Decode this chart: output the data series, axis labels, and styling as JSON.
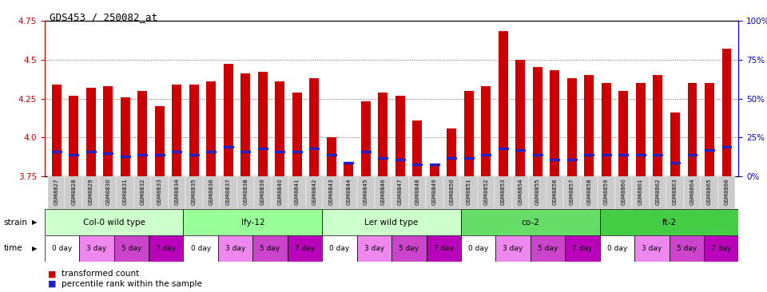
{
  "title": "GDS453 / 250082_at",
  "gsm_labels": [
    "GSM8827",
    "GSM8828",
    "GSM8829",
    "GSM8830",
    "GSM8831",
    "GSM8832",
    "GSM8833",
    "GSM8834",
    "GSM8835",
    "GSM8836",
    "GSM8837",
    "GSM8838",
    "GSM8839",
    "GSM8840",
    "GSM8841",
    "GSM8842",
    "GSM8843",
    "GSM8844",
    "GSM8845",
    "GSM8846",
    "GSM8847",
    "GSM8848",
    "GSM8849",
    "GSM8850",
    "GSM8851",
    "GSM8852",
    "GSM8853",
    "GSM8854",
    "GSM8855",
    "GSM8856",
    "GSM8857",
    "GSM8858",
    "GSM8859",
    "GSM8860",
    "GSM8861",
    "GSM8862",
    "GSM8863",
    "GSM8864",
    "GSM8865",
    "GSM8866"
  ],
  "bar_values": [
    4.34,
    4.27,
    4.32,
    4.33,
    4.26,
    4.3,
    4.2,
    4.34,
    4.34,
    4.36,
    4.47,
    4.41,
    4.42,
    4.36,
    4.29,
    4.38,
    4.0,
    3.84,
    4.23,
    4.29,
    4.27,
    4.11,
    3.83,
    4.06,
    4.3,
    4.33,
    4.68,
    4.5,
    4.45,
    4.43,
    4.38,
    4.4,
    4.35,
    4.3,
    4.35,
    4.4,
    4.16,
    4.35,
    4.35,
    4.57
  ],
  "percentile_values": [
    3.91,
    3.89,
    3.91,
    3.9,
    3.88,
    3.89,
    3.89,
    3.91,
    3.89,
    3.91,
    3.94,
    3.91,
    3.93,
    3.91,
    3.91,
    3.93,
    3.89,
    3.84,
    3.91,
    3.87,
    3.86,
    3.83,
    3.83,
    3.87,
    3.87,
    3.89,
    3.93,
    3.92,
    3.89,
    3.86,
    3.86,
    3.89,
    3.89,
    3.89,
    3.89,
    3.89,
    3.84,
    3.89,
    3.92,
    3.94
  ],
  "ylim_left": [
    3.75,
    4.75
  ],
  "yticks_left": [
    3.75,
    4.0,
    4.25,
    4.5,
    4.75
  ],
  "ytick_labels_right": [
    "0%",
    "25%",
    "50%",
    "75%",
    "100%"
  ],
  "bar_color": "#cc0000",
  "percentile_color": "#2222cc",
  "strains": [
    {
      "name": "Col-0 wild type",
      "start": 0,
      "end": 8,
      "color": "#ccffcc"
    },
    {
      "name": "lfy-12",
      "start": 8,
      "end": 16,
      "color": "#99ff99"
    },
    {
      "name": "Ler wild type",
      "start": 16,
      "end": 24,
      "color": "#ccffcc"
    },
    {
      "name": "co-2",
      "start": 24,
      "end": 32,
      "color": "#66dd66"
    },
    {
      "name": "ft-2",
      "start": 32,
      "end": 40,
      "color": "#44cc44"
    }
  ],
  "time_labels": [
    "0 day",
    "3 day",
    "5 day",
    "7 day"
  ],
  "time_colors": [
    "#ffffff",
    "#ee88ee",
    "#cc44cc",
    "#bb00bb"
  ],
  "axis_color_left": "#cc0000",
  "axis_color_right": "#0000cc",
  "background_color": "#ffffff",
  "grid_color": "#444444",
  "xticklabel_bg": "#cccccc"
}
